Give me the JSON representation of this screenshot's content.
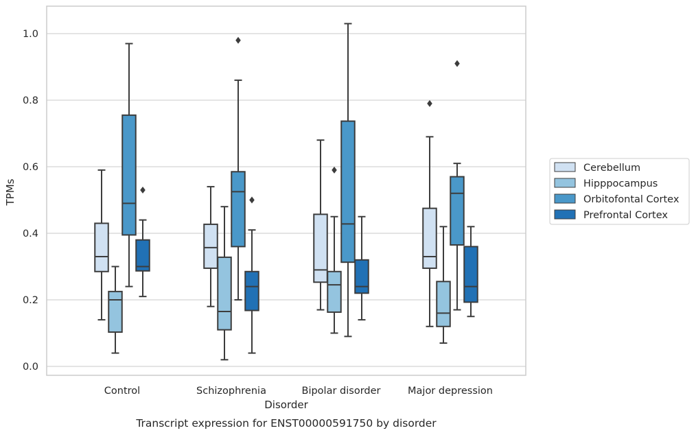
{
  "chart_data": {
    "type": "box",
    "title": "",
    "caption": "Transcript expression for ENST00000591750 by disorder",
    "xlabel": "Disorder",
    "ylabel": "TPMs",
    "ylim": [
      -0.03,
      1.08
    ],
    "yticks": [
      0.0,
      0.2,
      0.4,
      0.6,
      0.8,
      1.0
    ],
    "ytick_labels": [
      "0.0",
      "0.2",
      "0.4",
      "0.6",
      "0.8",
      "1.0"
    ],
    "categories": [
      "Control",
      "Schizophrenia",
      "Bipolar disorder",
      "Major depression"
    ],
    "grid": "horizontal",
    "legend_position": "right",
    "series": [
      {
        "name": "Cerebellum",
        "color": "#d0e1f2",
        "boxes": [
          {
            "whisker_low": 0.14,
            "q1": 0.285,
            "median": 0.33,
            "q3": 0.43,
            "whisker_high": 0.59,
            "outliers": []
          },
          {
            "whisker_low": 0.18,
            "q1": 0.295,
            "median": 0.357,
            "q3": 0.427,
            "whisker_high": 0.54,
            "outliers": []
          },
          {
            "whisker_low": 0.17,
            "q1": 0.253,
            "median": 0.29,
            "q3": 0.457,
            "whisker_high": 0.68,
            "outliers": []
          },
          {
            "whisker_low": 0.12,
            "q1": 0.295,
            "median": 0.33,
            "q3": 0.475,
            "whisker_high": 0.69,
            "outliers": [
              0.79
            ]
          }
        ]
      },
      {
        "name": "Hipppocampus",
        "color": "#94c4df",
        "boxes": [
          {
            "whisker_low": 0.04,
            "q1": 0.103,
            "median": 0.2,
            "q3": 0.225,
            "whisker_high": 0.3,
            "outliers": []
          },
          {
            "whisker_low": 0.02,
            "q1": 0.11,
            "median": 0.165,
            "q3": 0.328,
            "whisker_high": 0.48,
            "outliers": []
          },
          {
            "whisker_low": 0.1,
            "q1": 0.163,
            "median": 0.245,
            "q3": 0.285,
            "whisker_high": 0.45,
            "outliers": [
              0.59
            ]
          },
          {
            "whisker_low": 0.07,
            "q1": 0.12,
            "median": 0.16,
            "q3": 0.255,
            "whisker_high": 0.42,
            "outliers": []
          }
        ]
      },
      {
        "name": "Orbitofontal Cortex",
        "color": "#4a98c9",
        "boxes": [
          {
            "whisker_low": 0.24,
            "q1": 0.395,
            "median": 0.49,
            "q3": 0.755,
            "whisker_high": 0.97,
            "outliers": []
          },
          {
            "whisker_low": 0.2,
            "q1": 0.36,
            "median": 0.525,
            "q3": 0.585,
            "whisker_high": 0.86,
            "outliers": [
              0.98
            ]
          },
          {
            "whisker_low": 0.09,
            "q1": 0.313,
            "median": 0.428,
            "q3": 0.737,
            "whisker_high": 1.03,
            "outliers": []
          },
          {
            "whisker_low": 0.17,
            "q1": 0.365,
            "median": 0.52,
            "q3": 0.57,
            "whisker_high": 0.61,
            "outliers": [
              0.91
            ]
          }
        ]
      },
      {
        "name": "Prefrontal Cortex",
        "color": "#2171b5",
        "boxes": [
          {
            "whisker_low": 0.21,
            "q1": 0.287,
            "median": 0.3,
            "q3": 0.38,
            "whisker_high": 0.44,
            "outliers": [
              0.53
            ]
          },
          {
            "whisker_low": 0.04,
            "q1": 0.168,
            "median": 0.24,
            "q3": 0.285,
            "whisker_high": 0.41,
            "outliers": [
              0.5
            ]
          },
          {
            "whisker_low": 0.14,
            "q1": 0.22,
            "median": 0.24,
            "q3": 0.32,
            "whisker_high": 0.45,
            "outliers": []
          },
          {
            "whisker_low": 0.15,
            "q1": 0.193,
            "median": 0.24,
            "q3": 0.36,
            "whisker_high": 0.42,
            "outliers": []
          }
        ]
      }
    ]
  }
}
